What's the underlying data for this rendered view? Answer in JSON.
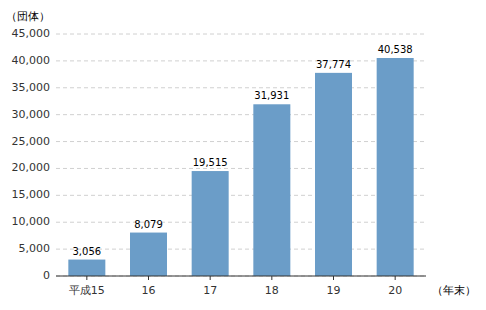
{
  "chart_data": {
    "type": "bar",
    "categories": [
      "平成15",
      "16",
      "17",
      "18",
      "19",
      "20"
    ],
    "values": [
      3056,
      8079,
      19515,
      31931,
      37774,
      40538
    ],
    "value_labels": [
      "3,056",
      "8,079",
      "19,515",
      "31,931",
      "37,774",
      "40,538"
    ],
    "data_labels": true,
    "color": "#6b9dc8",
    "ylabel": "（団体）",
    "xlabel": "（年末）",
    "ylim": [
      0,
      45000
    ],
    "yticks": [
      0,
      {
        "value": 5000,
        "label": "5,000"
      },
      {
        "value": 10000,
        "label": "10,000"
      },
      {
        "value": 15000,
        "label": "15,000"
      },
      {
        "value": 20000,
        "label": "20,000"
      },
      {
        "value": 25000,
        "label": "25,000"
      },
      {
        "value": 30000,
        "label": "30,000"
      },
      {
        "value": 35000,
        "label": "35,000"
      },
      {
        "value": 40000,
        "label": "40,000"
      },
      {
        "value": 45000,
        "label": "45,000"
      }
    ],
    "grid": true
  }
}
